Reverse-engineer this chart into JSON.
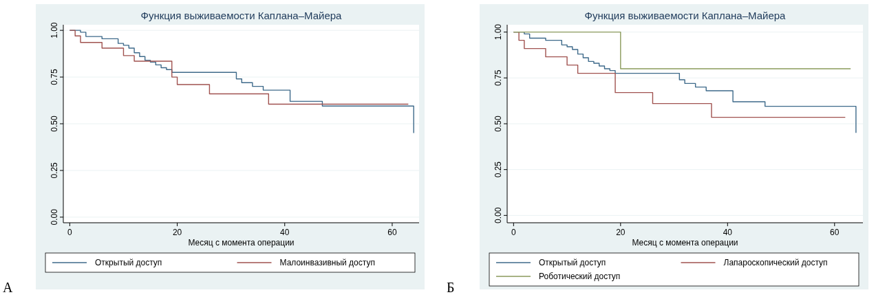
{
  "chart_data": [
    {
      "type": "step",
      "title": "Функция выживаемости Каплана–Майера",
      "xlabel": "Месяц с момента операции",
      "annotations": [
        "А"
      ],
      "xlim": [
        -1.2,
        65
      ],
      "ylim": [
        -0.03,
        1.03
      ],
      "xticks": [
        0,
        20,
        40,
        60
      ],
      "yticks": [
        {
          "value": 0,
          "label": "0.00"
        },
        {
          "value": 0.25,
          "label": "0.25"
        },
        {
          "value": 0.5,
          "label": "0.50"
        },
        {
          "value": 0.75,
          "label": "0.75"
        },
        {
          "value": 1,
          "label": "1.00"
        }
      ],
      "grid": "y",
      "legend": "bottom",
      "line_style": "solid",
      "series": [
        {
          "name": "Открытый доступ",
          "color": "#3e6a8a",
          "x": [
            0,
            2,
            3,
            6,
            9,
            10,
            11,
            12,
            13,
            14,
            15,
            16,
            17,
            18,
            19,
            31,
            32,
            34,
            36,
            41,
            47,
            64,
            64
          ],
          "values": [
            1,
            0.99,
            0.967,
            0.955,
            0.93,
            0.92,
            0.905,
            0.88,
            0.86,
            0.84,
            0.83,
            0.815,
            0.8,
            0.79,
            0.775,
            0.74,
            0.72,
            0.7,
            0.68,
            0.62,
            0.595,
            0.595,
            0.45
          ]
        },
        {
          "name": "Малоинвазивный доступ",
          "color": "#a0524f",
          "x": [
            0,
            1,
            2,
            6,
            10,
            12,
            19,
            20,
            26,
            37,
            63
          ],
          "values": [
            1,
            0.97,
            0.935,
            0.905,
            0.865,
            0.835,
            0.75,
            0.71,
            0.66,
            0.605,
            0.605
          ]
        }
      ]
    },
    {
      "type": "step",
      "title": "Функция выживаемости Каплана–Майера",
      "xlabel": "Месяц с момента операции",
      "annotations": [
        "Б"
      ],
      "xlim": [
        -1.2,
        65.3
      ],
      "ylim": [
        -0.04,
        1.04
      ],
      "xticks": [
        0,
        20,
        40,
        60
      ],
      "yticks": [
        {
          "value": 0,
          "label": "0.00"
        },
        {
          "value": 0.25,
          "label": "0.25"
        },
        {
          "value": 0.5,
          "label": "0.50"
        },
        {
          "value": 0.75,
          "label": "0.75"
        },
        {
          "value": 1,
          "label": "1.00"
        }
      ],
      "grid": "y",
      "legend": "bottom",
      "line_style": "solid",
      "series": [
        {
          "name": "Открытый доступ",
          "color": "#3e6a8a",
          "x": [
            0,
            2,
            3,
            6,
            9,
            10,
            11,
            12,
            13,
            14,
            15,
            16,
            17,
            18,
            19,
            31,
            32,
            34,
            36,
            41,
            47,
            64,
            64
          ],
          "values": [
            1,
            0.99,
            0.967,
            0.955,
            0.93,
            0.92,
            0.905,
            0.88,
            0.86,
            0.84,
            0.83,
            0.815,
            0.8,
            0.79,
            0.775,
            0.74,
            0.72,
            0.7,
            0.68,
            0.62,
            0.595,
            0.595,
            0.45
          ]
        },
        {
          "name": "Лапароскопический доступ",
          "color": "#a0524f",
          "x": [
            0,
            1,
            2,
            6,
            10,
            12,
            19,
            26,
            37,
            62
          ],
          "values": [
            1,
            0.955,
            0.91,
            0.865,
            0.82,
            0.775,
            0.67,
            0.61,
            0.535,
            0.535
          ]
        },
        {
          "name": "Роботический доступ",
          "color": "#8a9a5b",
          "x": [
            0,
            20,
            63
          ],
          "values": [
            1,
            0.8,
            0.8
          ]
        }
      ]
    }
  ]
}
